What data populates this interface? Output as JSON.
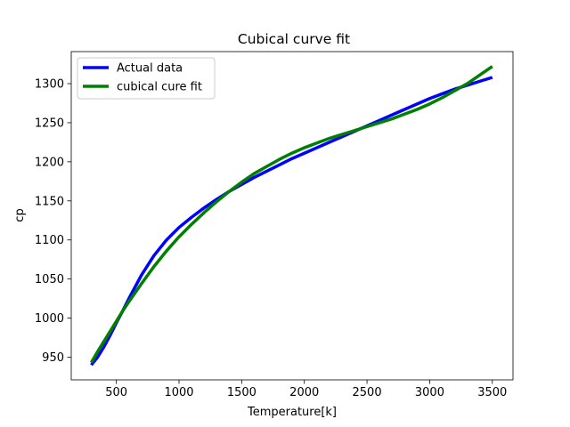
{
  "chart_data": {
    "type": "line",
    "title": "Cubical curve fit",
    "xlabel": "Temperature[k]",
    "ylabel": "cp",
    "xlim": [
      140,
      3665
    ],
    "ylim": [
      921,
      1341
    ],
    "xticks": [
      500,
      1000,
      1500,
      2000,
      2500,
      3000,
      3500
    ],
    "yticks": [
      950,
      1000,
      1050,
      1100,
      1150,
      1200,
      1250,
      1300
    ],
    "grid": false,
    "legend_position": "top-left",
    "series": [
      {
        "name": "Actual data",
        "color": "#0000ff",
        "x": [
          300,
          350,
          400,
          450,
          500,
          550,
          600,
          700,
          800,
          900,
          1000,
          1100,
          1200,
          1300,
          1400,
          1500,
          1600,
          1700,
          1800,
          1900,
          2000,
          2100,
          2200,
          2300,
          2400,
          2500,
          2600,
          2700,
          2800,
          2900,
          3000,
          3100,
          3200,
          3300,
          3400,
          3500
        ],
        "y": [
          940,
          950,
          963,
          978,
          994,
          1009,
          1025,
          1055,
          1080,
          1100,
          1116,
          1129,
          1141,
          1152,
          1162,
          1171,
          1180,
          1188,
          1196,
          1204,
          1211,
          1218,
          1225,
          1232,
          1239,
          1246,
          1253,
          1260,
          1267,
          1274,
          1281,
          1287,
          1293,
          1298,
          1303,
          1308
        ]
      },
      {
        "name": "cubical cure fit",
        "color": "#008000",
        "x": [
          300,
          350,
          400,
          450,
          500,
          550,
          600,
          700,
          800,
          900,
          1000,
          1100,
          1200,
          1300,
          1400,
          1500,
          1600,
          1700,
          1800,
          1900,
          2000,
          2100,
          2200,
          2300,
          2400,
          2500,
          2600,
          2700,
          2800,
          2900,
          3000,
          3100,
          3200,
          3300,
          3400,
          3500
        ],
        "y": [
          943,
          957,
          970,
          983,
          996,
          1009,
          1021,
          1044,
          1066,
          1086,
          1104,
          1120,
          1135,
          1149,
          1162,
          1174,
          1185,
          1194,
          1203,
          1211,
          1218,
          1224,
          1230,
          1235,
          1240,
          1245,
          1250,
          1255,
          1261,
          1267,
          1274,
          1282,
          1291,
          1300,
          1311,
          1322
        ]
      }
    ]
  }
}
